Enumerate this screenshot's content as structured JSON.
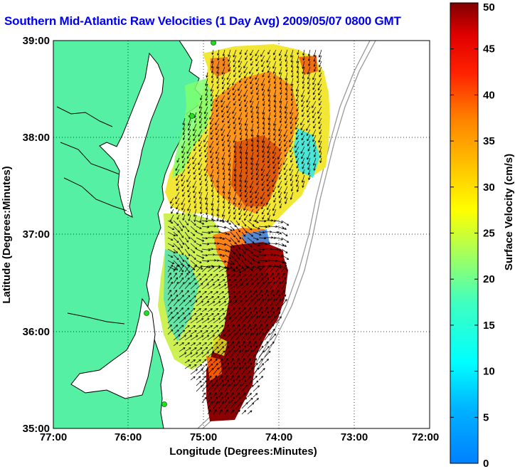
{
  "title": "Southern Mid-Atlantic Raw Velocities (1 Day Avg) 2009/05/07 0800 GMT",
  "xlabel": "Longitude (Degrees:Minutes)",
  "ylabel": "Latitude (Degrees:Minutes)",
  "colorbar": {
    "label": "Surface Velocity (cm/s)",
    "min": 0,
    "max": 50,
    "ticks": [
      "0",
      "5",
      "10",
      "15",
      "20",
      "25",
      "30",
      "35",
      "40",
      "45",
      "50"
    ],
    "colormap": "jet"
  },
  "map": {
    "lon_range": [
      -77,
      -72
    ],
    "lat_range": [
      35,
      39
    ],
    "x_ticks": [
      "77:00",
      "76:00",
      "75:00",
      "74:00",
      "73:00",
      "72:00"
    ],
    "y_ticks": [
      "35:00",
      "36:00",
      "37:00",
      "38:00",
      "39:00"
    ],
    "grid": "dotted",
    "land_color": "#55f0a3",
    "station_color": "#22dd22"
  }
}
